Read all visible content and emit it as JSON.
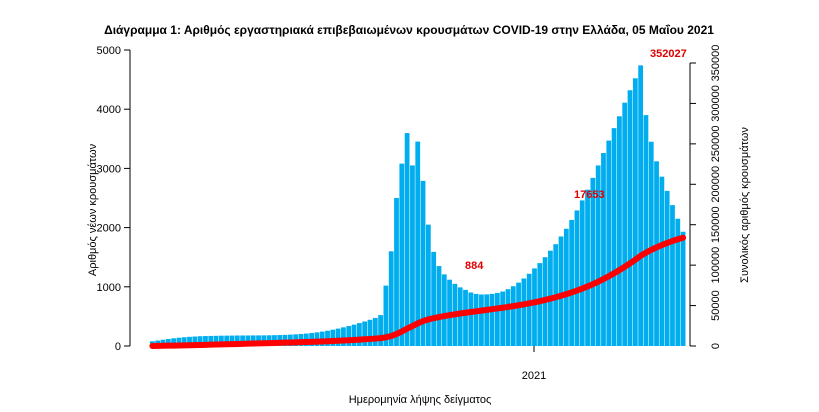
{
  "chart_data": {
    "type": "bar",
    "title": "Διάγραμμα 1: Αριθμός εργαστηριακά επιβεβαιωμένων κρουσμάτων COVID-19 στην Ελλάδα, 05 Μαΐου 2021",
    "xlabel": "Ημερομηνία λήψης δείγματος",
    "ylabel": "Αριθμός νέων κρουσμάτων",
    "y2label": "Συνολικός αριθμός κρουσμάτων",
    "x_tick_label": "2021",
    "ylim": [
      0,
      5000
    ],
    "y_ticks": [
      0,
      1000,
      2000,
      3000,
      4000,
      5000
    ],
    "y2lim": [
      0,
      350000
    ],
    "y2_ticks": [
      0,
      50000,
      100000,
      150000,
      200000,
      250000,
      300000,
      350000
    ],
    "grid": false,
    "colors": {
      "bars": "#00aeef",
      "cumulative_line": "#ff0000",
      "annotations": "#e10000"
    },
    "series": [
      {
        "name": "Αριθμός νέων κρουσμάτων",
        "type": "bar",
        "axis": "left",
        "values": [
          80,
          92,
          105,
          118,
          130,
          140,
          148,
          155,
          160,
          165,
          168,
          170,
          172,
          174,
          175,
          176,
          177,
          178,
          178,
          179,
          179,
          180,
          181,
          183,
          185,
          188,
          192,
          197,
          203,
          210,
          219,
          230,
          243,
          258,
          275,
          294,
          315,
          337,
          361,
          387,
          414,
          443,
          474,
          522,
          1020,
          1600,
          2500,
          3080,
          3597,
          3050,
          3453,
          2790,
          2050,
          1590,
          1350,
          1210,
          1120,
          1050,
          990,
          948,
          904,
          880,
          870,
          872,
          880,
          896,
          920,
          960,
          1010,
          1070,
          1140,
          1220,
          1310,
          1400,
          1500,
          1610,
          1720,
          1850,
          1980,
          2130,
          2290,
          2460,
          2640,
          2840,
          3050,
          3260,
          3470,
          3680,
          3880,
          4110,
          4320,
          4522,
          4740,
          3900,
          3450,
          3120,
          2860,
          2620,
          2380,
          2150,
          1930
        ]
      },
      {
        "name": "Συνολικός αριθμός κρουσμάτων",
        "type": "line",
        "axis": "right",
        "values": [
          80,
          173,
          278,
          396,
          526,
          666,
          815,
          970,
          1130,
          1295,
          1464,
          1634,
          1806,
          1980,
          2156,
          2333,
          2510,
          2688,
          2867,
          3047,
          3226,
          3407,
          3589,
          3773,
          3958,
          4146,
          4338,
          4536,
          4739,
          4949,
          5169,
          5399,
          5642,
          5901,
          6177,
          6471,
          6786,
          7124,
          7486,
          7873,
          8288,
          8731,
          9206,
          9728,
          10748,
          12348,
          14848,
          17928,
          21525,
          24575,
          28028,
          30818,
          32868,
          34458,
          35808,
          37018,
          38138,
          39188,
          40178,
          41126,
          42030,
          42910,
          43780,
          44652,
          45532,
          46428,
          47348,
          48308,
          49318,
          50388,
          51528,
          52748,
          54058,
          55458,
          56958,
          58568,
          60288,
          62138,
          64118,
          66248,
          68538,
          70998,
          73638,
          76478,
          79528,
          82788,
          86258,
          89938,
          93818,
          97928,
          102248,
          106770,
          111510,
          115410,
          118860,
          121980,
          124840,
          127460,
          129840,
          131990,
          133920
        ]
      }
    ],
    "annotations": [
      {
        "text": "352027"
      },
      {
        "text": "17653"
      },
      {
        "text": "884"
      }
    ]
  }
}
